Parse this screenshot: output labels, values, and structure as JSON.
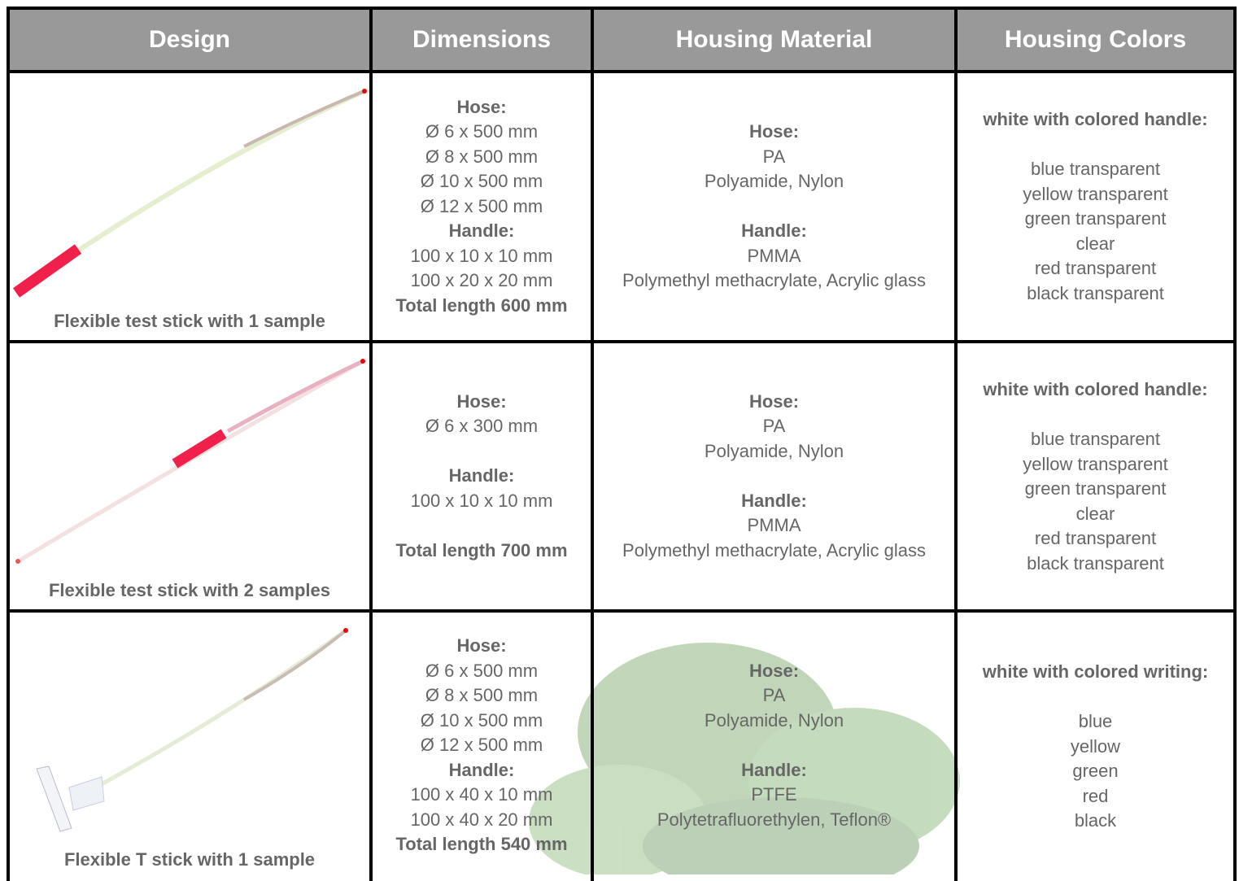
{
  "table": {
    "headers": [
      "Design",
      "Dimensions",
      "Housing Material",
      "Housing Colors"
    ],
    "rows": [
      {
        "design": {
          "caption": "Flexible test stick with 1 sample"
        },
        "dimensions": {
          "sections": [
            {
              "heading": "Hose:",
              "lines": [
                "Ø 6 x 500 mm",
                "Ø 8 x 500 mm",
                "Ø 10 x 500 mm",
                "Ø 12 x 500 mm"
              ]
            },
            {
              "heading": "Handle:",
              "lines": [
                "100 x 10 x 10 mm",
                "100 x 20 x 20 mm"
              ]
            }
          ],
          "total": "Total length 600 mm"
        },
        "material": {
          "sections": [
            {
              "heading": "Hose:",
              "lines": [
                "PA",
                "Polyamide, Nylon"
              ]
            },
            {
              "heading": "Handle:",
              "lines": [
                "PMMA",
                "Polymethyl methacrylate, Acrylic glass"
              ]
            }
          ]
        },
        "colors": {
          "heading": "white with colored handle:",
          "items": [
            "blue transparent",
            "yellow transparent",
            "green transparent",
            "clear",
            "red transparent",
            "black transparent"
          ]
        }
      },
      {
        "design": {
          "caption": "Flexible test stick with 2 samples"
        },
        "dimensions": {
          "sections": [
            {
              "heading": "Hose:",
              "lines": [
                "Ø 6 x 300 mm"
              ]
            },
            {
              "heading": "Handle:",
              "lines": [
                "100 x 10 x 10 mm"
              ]
            }
          ],
          "total": "Total length 700 mm"
        },
        "material": {
          "sections": [
            {
              "heading": "Hose:",
              "lines": [
                "PA",
                "Polyamide, Nylon"
              ]
            },
            {
              "heading": "Handle:",
              "lines": [
                "PMMA",
                "Polymethyl methacrylate, Acrylic glass"
              ]
            }
          ]
        },
        "colors": {
          "heading": "white with colored handle:",
          "items": [
            "blue transparent",
            "yellow transparent",
            "green transparent",
            "clear",
            "red transparent",
            "black transparent"
          ]
        }
      },
      {
        "design": {
          "caption": "Flexible T stick with 1 sample"
        },
        "dimensions": {
          "sections": [
            {
              "heading": "Hose:",
              "lines": [
                "Ø 6 x 500 mm",
                "Ø 8 x 500 mm",
                "Ø 10 x 500 mm",
                "Ø 12 x 500 mm"
              ]
            },
            {
              "heading": "Handle:",
              "lines": [
                "100 x 40 x 10 mm",
                "100 x 40 x 20 mm"
              ]
            }
          ],
          "total": "Total length 540 mm"
        },
        "material": {
          "sections": [
            {
              "heading": "Hose:",
              "lines": [
                "PA",
                "Polyamide, Nylon"
              ]
            },
            {
              "heading": "Handle:",
              "lines": [
                "PTFE",
                "Polytetrafluorethylen, Teflon®"
              ]
            }
          ]
        },
        "colors": {
          "heading": "white with colored writing:",
          "items": [
            "blue",
            "yellow",
            "green",
            "red",
            "black"
          ]
        }
      }
    ]
  }
}
